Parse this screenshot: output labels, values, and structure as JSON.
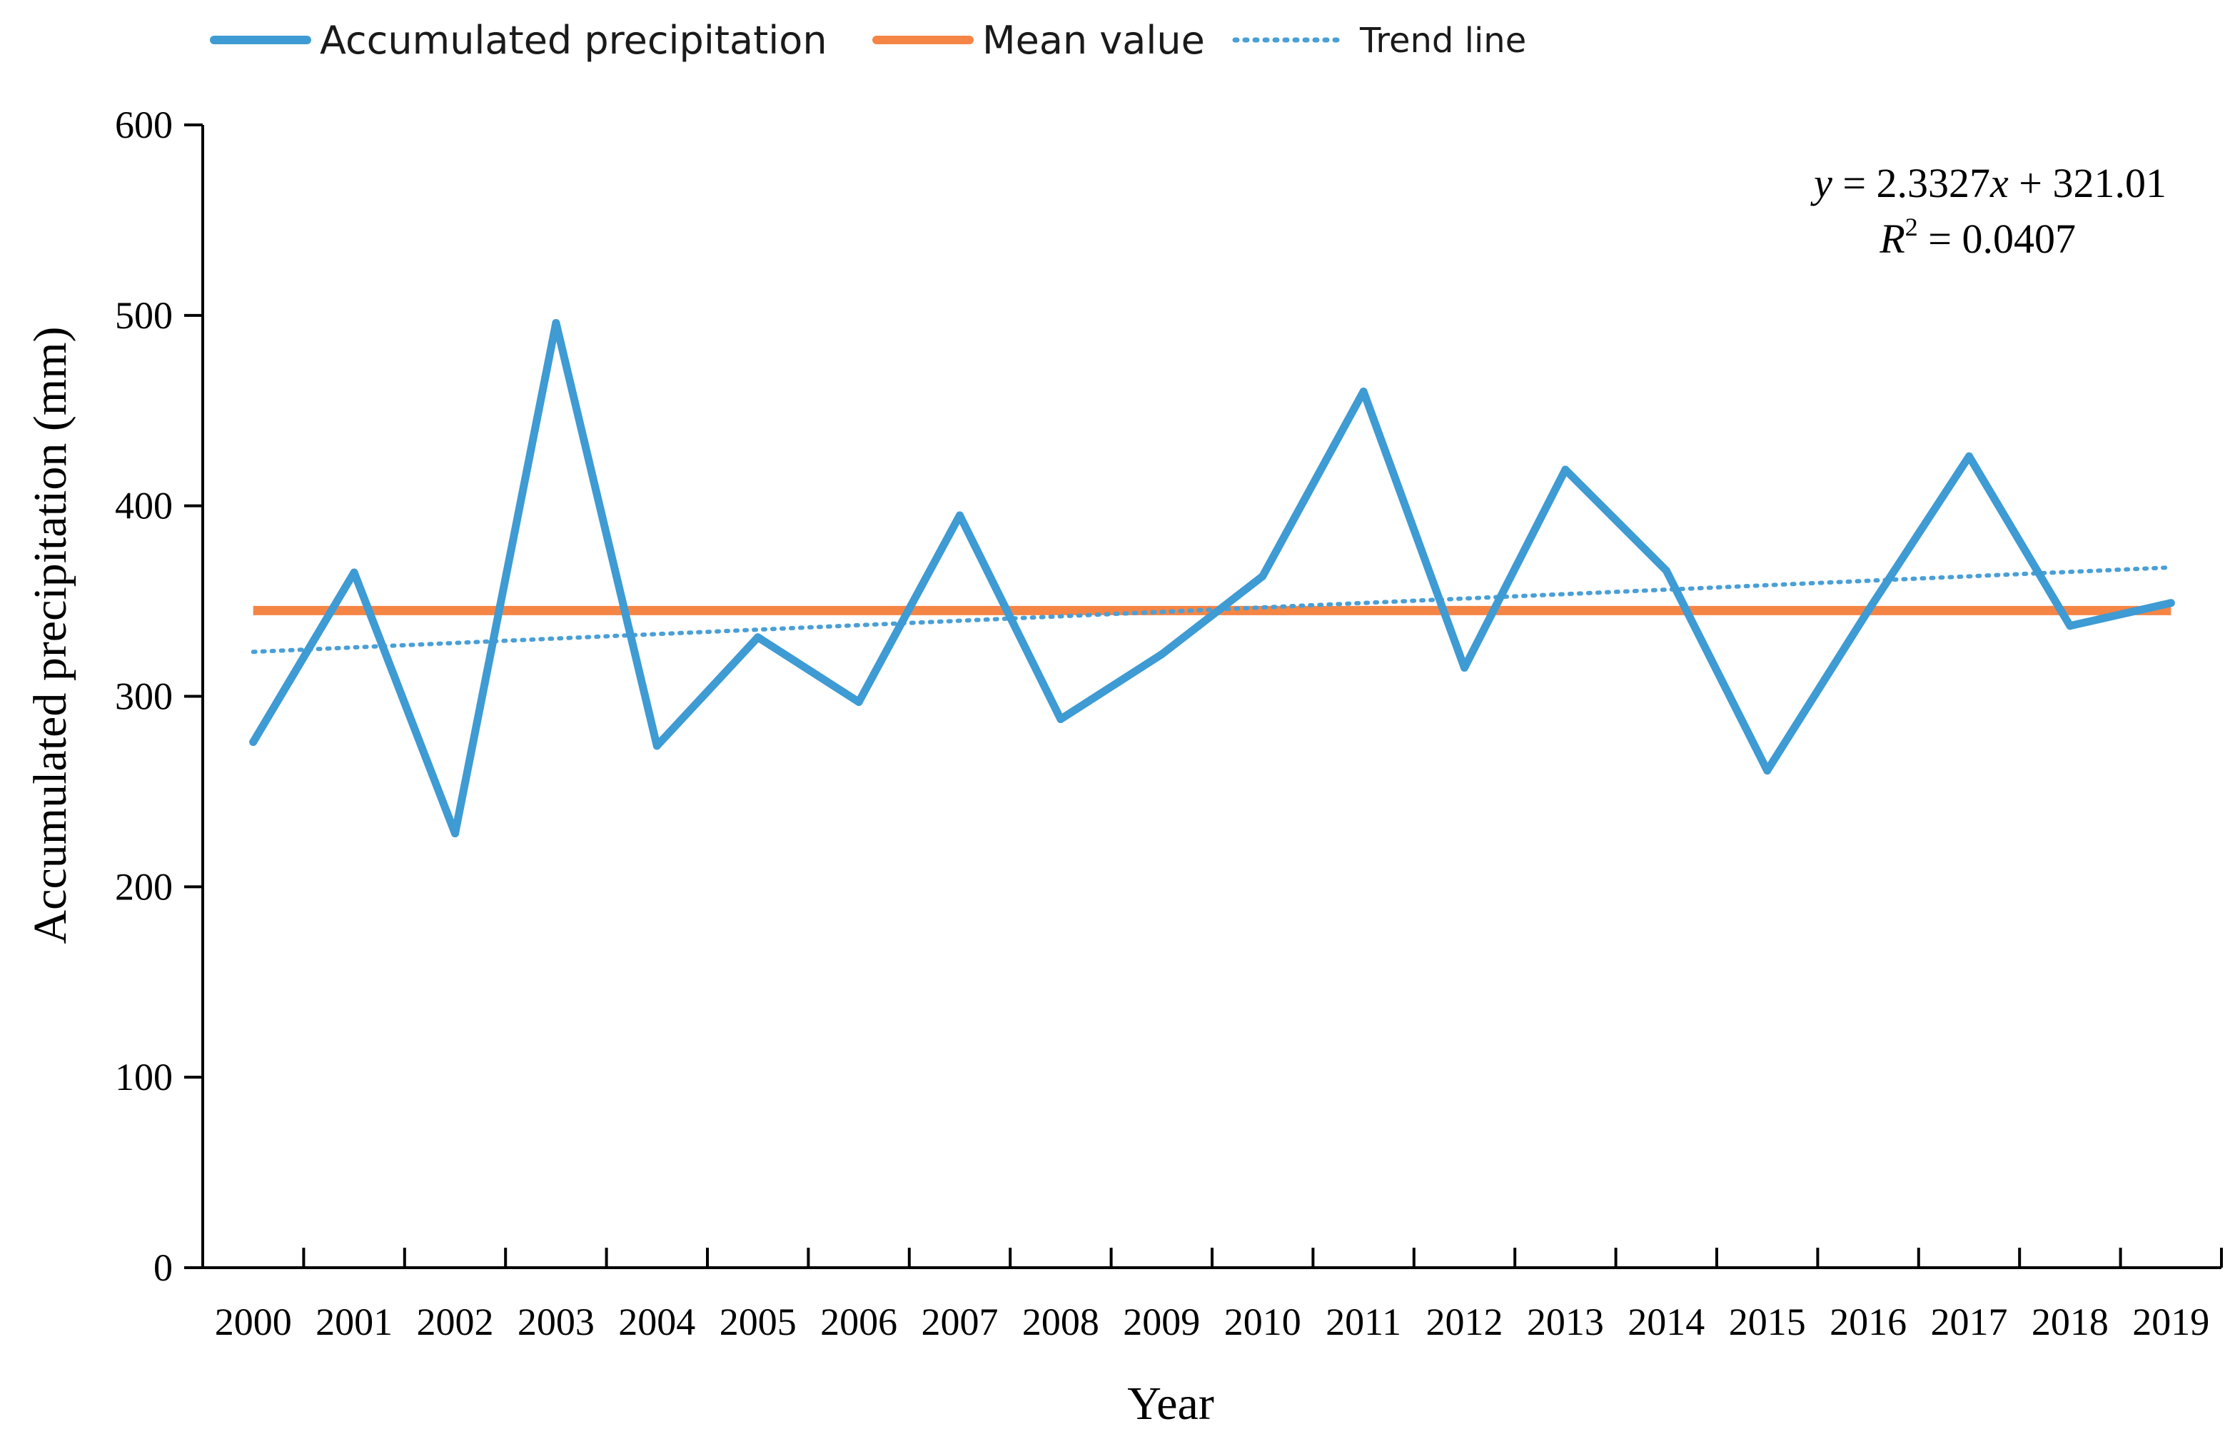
{
  "chart_data": {
    "type": "line",
    "title": "",
    "xlabel": "Year",
    "ylabel": "Accumulated precipitation (mm)",
    "ylim": [
      0,
      600
    ],
    "yticks": [
      0,
      100,
      200,
      300,
      400,
      500,
      600
    ],
    "categories": [
      "2000",
      "2001",
      "2002",
      "2003",
      "2004",
      "2005",
      "2006",
      "2007",
      "2008",
      "2009",
      "2010",
      "2011",
      "2012",
      "2013",
      "2014",
      "2015",
      "2016",
      "2017",
      "2018",
      "2019"
    ],
    "series": [
      {
        "name": "Accumulated precipitation",
        "color": "#3e9bd3",
        "style": "solid",
        "values": [
          276,
          365,
          228,
          496,
          274,
          331,
          297,
          395,
          288,
          322,
          363,
          460,
          315,
          419,
          366,
          261,
          345,
          426,
          337,
          349
        ]
      },
      {
        "name": "Mean value",
        "color": "#f58545",
        "style": "solid",
        "values": [
          345,
          345,
          345,
          345,
          345,
          345,
          345,
          345,
          345,
          345,
          345,
          345,
          345,
          345,
          345,
          345,
          345,
          345,
          345,
          345
        ]
      },
      {
        "name": "Trend line",
        "color": "#4a9fd6",
        "style": "dotted",
        "slope": 2.3327,
        "intercept": 321.01
      }
    ],
    "annotation": {
      "equation_y": "y",
      "equation_rest": " = 2.3327",
      "equation_x": "x",
      "equation_tail": " + 321.01",
      "r2_R": "R",
      "r2_sup": "2",
      "r2_value": " = 0.0407"
    },
    "legend_position": "top-left",
    "grid": false
  }
}
